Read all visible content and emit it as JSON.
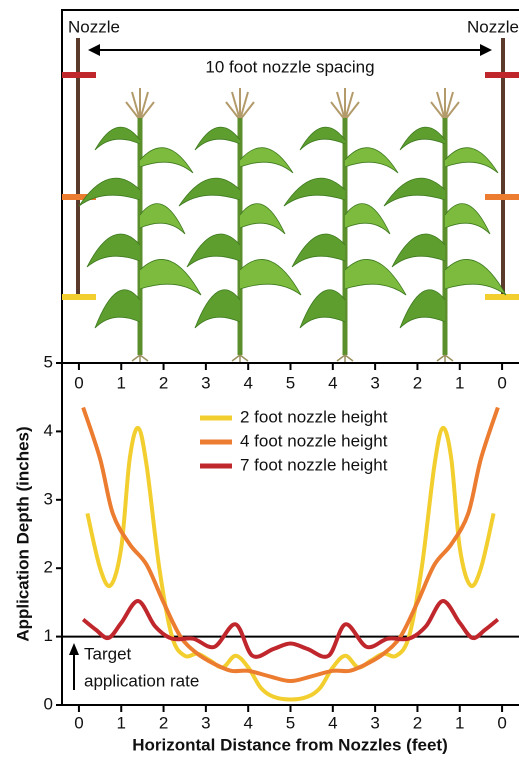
{
  "chart_data": {
    "type": "line",
    "top_labels": {
      "left_nozzle": "Nozzle",
      "right_nozzle": "Nozzle",
      "spacing": "10 foot nozzle spacing"
    },
    "xlabel": "Horizontal Distance from Nozzles (feet)",
    "ylabel": "Application Depth (inches)",
    "annotation": [
      "Target",
      "application rate"
    ],
    "reference_line": 1,
    "xlim": [
      -0.4,
      10.4
    ],
    "ylim": [
      0,
      5
    ],
    "xticks": [
      0,
      1,
      2,
      3,
      4,
      5,
      {
        "value": 6,
        "label": "4"
      },
      {
        "value": 7,
        "label": "3"
      },
      {
        "value": 8,
        "label": "2"
      },
      {
        "value": 9,
        "label": "1"
      },
      {
        "value": 10,
        "label": "0"
      }
    ],
    "yticks": [
      0,
      1,
      2,
      3,
      4,
      5
    ],
    "series": [
      {
        "name": "2 foot nozzle height",
        "color": "#f2cf2f",
        "x": [
          0.2,
          0.5,
          0.75,
          1.0,
          1.2,
          1.4,
          1.6,
          1.9,
          2.2,
          2.5,
          2.8,
          3.1,
          3.4,
          3.7,
          4.0,
          4.3,
          4.6,
          5.0,
          5.4,
          5.7,
          6.0,
          6.3,
          6.6,
          6.9,
          7.2,
          7.5,
          7.8,
          8.1,
          8.4,
          8.6,
          8.8,
          9.0,
          9.25,
          9.5,
          9.8
        ],
        "values": [
          2.8,
          2.0,
          1.75,
          2.3,
          3.6,
          4.05,
          3.5,
          2.0,
          1.0,
          0.72,
          0.75,
          0.65,
          0.55,
          0.72,
          0.55,
          0.25,
          0.12,
          0.08,
          0.12,
          0.25,
          0.55,
          0.72,
          0.55,
          0.65,
          0.75,
          0.72,
          1.0,
          2.0,
          3.5,
          4.05,
          3.6,
          2.3,
          1.75,
          2.0,
          2.8
        ]
      },
      {
        "name": "4 foot nozzle height",
        "color": "#ec7c30",
        "x": [
          0.1,
          0.5,
          0.8,
          1.2,
          1.6,
          2.0,
          2.4,
          2.8,
          3.2,
          3.6,
          4.0,
          4.5,
          5.0,
          5.5,
          6.0,
          6.4,
          6.8,
          7.2,
          7.6,
          8.0,
          8.4,
          8.8,
          9.2,
          9.5,
          9.9
        ],
        "values": [
          4.35,
          3.6,
          2.8,
          2.35,
          2.05,
          1.5,
          1.0,
          0.75,
          0.6,
          0.5,
          0.5,
          0.42,
          0.35,
          0.42,
          0.5,
          0.5,
          0.6,
          0.75,
          1.0,
          1.5,
          2.05,
          2.35,
          2.8,
          3.6,
          4.35
        ]
      },
      {
        "name": "7 foot nozzle height",
        "color": "#c0272d",
        "x": [
          0.1,
          0.4,
          0.7,
          1.0,
          1.4,
          1.8,
          2.2,
          2.7,
          3.2,
          3.7,
          4.1,
          4.6,
          5.0,
          5.4,
          5.9,
          6.3,
          6.8,
          7.3,
          7.8,
          8.2,
          8.6,
          9.0,
          9.3,
          9.6,
          9.9
        ],
        "values": [
          1.25,
          1.1,
          0.98,
          1.2,
          1.52,
          1.15,
          0.97,
          0.97,
          0.85,
          1.18,
          0.72,
          0.82,
          0.9,
          0.82,
          0.72,
          1.18,
          0.85,
          0.97,
          0.97,
          1.15,
          1.52,
          1.2,
          0.98,
          1.1,
          1.25
        ]
      }
    ]
  }
}
